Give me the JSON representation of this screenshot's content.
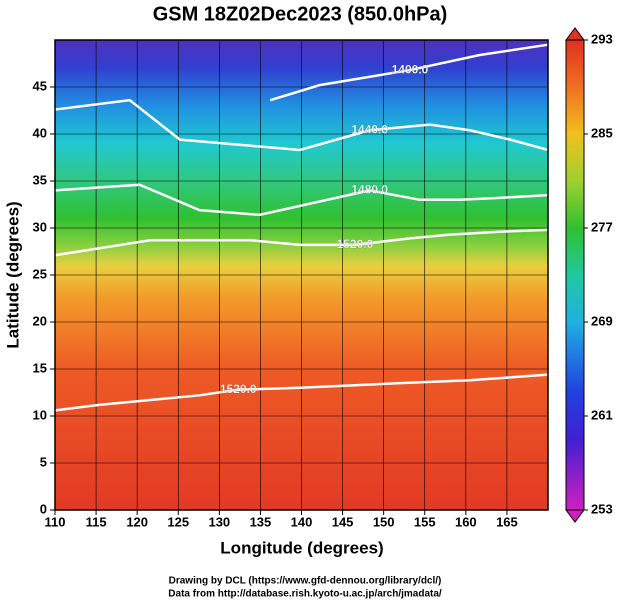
{
  "chart_data": {
    "type": "contour",
    "title": "GSM 18Z02Dec2023 (850.0hPa)",
    "xlabel": "Longitude (degrees)",
    "ylabel": "Latitude  (degrees)",
    "xlim": [
      110,
      170
    ],
    "xticks": [
      110,
      115,
      120,
      125,
      130,
      135,
      140,
      145,
      150,
      155,
      160,
      165
    ],
    "ylim": [
      0,
      50
    ],
    "yticks": [
      0,
      5,
      10,
      15,
      20,
      25,
      30,
      35,
      40,
      45
    ],
    "grid": true,
    "colorbar": {
      "lim": [
        253,
        293
      ],
      "ticks": [
        253,
        261,
        269,
        277,
        285,
        293
      ]
    },
    "contours": [
      {
        "label": "1400.0",
        "x": [
          136.2,
          142.2,
          153.2,
          161.7,
          170
        ],
        "y": [
          43.6,
          45.2,
          46.8,
          48.4,
          49.5
        ]
      },
      {
        "label": "1440.0",
        "x": [
          110,
          119.1,
          125.2,
          139.8,
          148.3,
          155.6,
          160.5,
          165.4,
          170
        ],
        "y": [
          42.6,
          43.6,
          39.4,
          38.3,
          40.4,
          41.0,
          40.4,
          39.4,
          38.3
        ]
      },
      {
        "label": "1480.0",
        "x": [
          110,
          120.3,
          127.6,
          134.9,
          148.3,
          154.4,
          159.3,
          164.1,
          170
        ],
        "y": [
          34.0,
          34.6,
          31.9,
          31.4,
          34.0,
          33.0,
          33.0,
          33.2,
          33.5
        ]
      },
      {
        "label": "1520.0",
        "x": [
          110,
          121.6,
          133.7,
          139.8,
          146.5,
          153.2,
          158.1,
          164.1,
          170
        ],
        "y": [
          27.1,
          28.7,
          28.7,
          28.2,
          28.2,
          28.9,
          29.3,
          29.6,
          29.8
        ]
      },
      {
        "label": "1520.0",
        "x": [
          110,
          115.5,
          121.6,
          127.6,
          132.3,
          139.8,
          152.0,
          160.5,
          170
        ],
        "y": [
          10.6,
          11.2,
          11.7,
          12.2,
          12.8,
          13.0,
          13.5,
          13.8,
          14.4
        ]
      }
    ],
    "credits": [
      "Drawing by DCL (https://www.gfd-dennou.org/library/dcl/)",
      "Data from http://database.rish.kyoto-u.ac.jp/arch/jmadata/"
    ]
  }
}
